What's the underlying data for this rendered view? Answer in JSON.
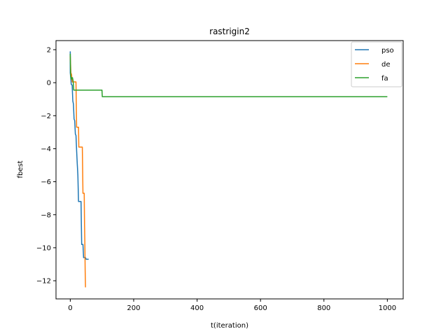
{
  "chart_data": {
    "type": "line",
    "title": "rastrigin2",
    "xlabel": "t(iteration)",
    "ylabel": "fbest",
    "xlim": [
      -45,
      1050
    ],
    "ylim": [
      -13.1,
      2.55
    ],
    "xticks": [
      0,
      200,
      400,
      600,
      800,
      1000
    ],
    "xtick_labels": [
      "0",
      "200",
      "400",
      "600",
      "800",
      "1000"
    ],
    "yticks": [
      2,
      0,
      -2,
      -4,
      -6,
      -8,
      -10,
      -12
    ],
    "ytick_labels": [
      "2",
      "0",
      "−2",
      "−4",
      "−6",
      "−8",
      "−10",
      "−12"
    ],
    "grid": false,
    "legend_position": "top-right",
    "series": [
      {
        "name": "pso",
        "color": "#1f77b4",
        "points": [
          [
            0,
            1.9
          ],
          [
            0,
            0.6
          ],
          [
            2,
            0.2
          ],
          [
            3,
            -0.1
          ],
          [
            6,
            -0.15
          ],
          [
            8,
            -1.1
          ],
          [
            10,
            -1.3
          ],
          [
            12,
            -2.2
          ],
          [
            14,
            -2.3
          ],
          [
            16,
            -3.1
          ],
          [
            18,
            -3.2
          ],
          [
            20,
            -4.1
          ],
          [
            22,
            -4.9
          ],
          [
            24,
            -5.6
          ],
          [
            26,
            -7.2
          ],
          [
            34,
            -7.2
          ],
          [
            35,
            -8.6
          ],
          [
            36,
            -9.8
          ],
          [
            40,
            -9.8
          ],
          [
            42,
            -10.6
          ],
          [
            48,
            -10.6
          ],
          [
            50,
            -10.7
          ],
          [
            58,
            -10.7
          ]
        ]
      },
      {
        "name": "de",
        "color": "#ff7f0e",
        "points": [
          [
            0,
            1.6
          ],
          [
            2,
            0.6
          ],
          [
            4,
            0.5
          ],
          [
            6,
            0.05
          ],
          [
            18,
            0.05
          ],
          [
            19,
            -1.3
          ],
          [
            20,
            -2.7
          ],
          [
            26,
            -2.7
          ],
          [
            27,
            -3.9
          ],
          [
            38,
            -3.9
          ],
          [
            39,
            -5.2
          ],
          [
            40,
            -6.7
          ],
          [
            44,
            -6.7
          ],
          [
            45,
            -8.6
          ],
          [
            46,
            -9.7
          ],
          [
            47,
            -11.4
          ],
          [
            48,
            -12.4
          ]
        ]
      },
      {
        "name": "fa",
        "color": "#2ca02c",
        "points": [
          [
            0,
            1.75
          ],
          [
            1,
            0.5
          ],
          [
            3,
            0.2
          ],
          [
            5,
            0.3
          ],
          [
            7,
            0.3
          ],
          [
            9,
            0.1
          ],
          [
            11,
            -0.45
          ],
          [
            100,
            -0.45
          ],
          [
            101,
            -0.85
          ],
          [
            1000,
            -0.85
          ]
        ]
      }
    ]
  }
}
